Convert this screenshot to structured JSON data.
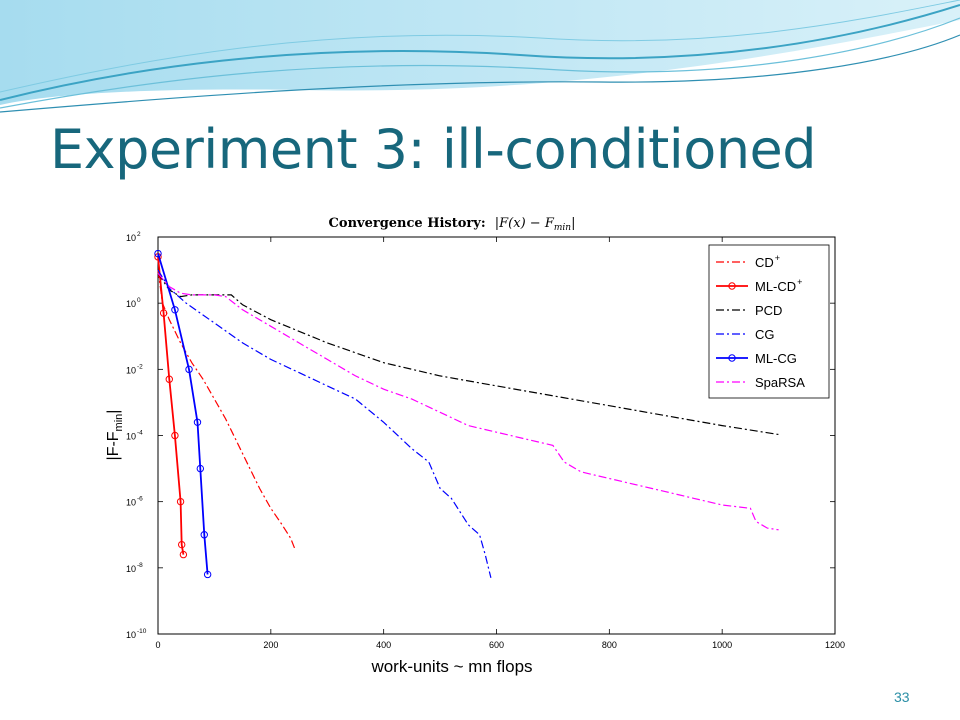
{
  "slide": {
    "title": "Experiment 3: ill-conditioned",
    "page_number": "33"
  },
  "colors": {
    "title": "#17677c",
    "page_number": "#2b8fa6",
    "wave_dark": "#3ba3c4",
    "wave_light": "#bfe6f3"
  },
  "chart_data": {
    "type": "line",
    "title": {
      "prefix": "Convergence History:",
      "math": "|F(x) − F",
      "math_sub": "min",
      "math_end": "|"
    },
    "xlabel": "work-units ~ mn flops",
    "ylabel": {
      "main": "|F-F",
      "sub": "min",
      "end": "|"
    },
    "x_scale": "linear",
    "y_scale": "log",
    "xlim": [
      0,
      1200
    ],
    "ylim_exp": [
      -10,
      2
    ],
    "x_ticks": [
      0,
      200,
      400,
      600,
      800,
      1000,
      1200
    ],
    "x_tick_labels": [
      "0",
      "200",
      "400",
      "600",
      "800",
      "1000",
      "1200"
    ],
    "y_ticks_exp": [
      -10,
      -8,
      -6,
      -4,
      -2,
      0,
      2
    ],
    "y_tick_labels": [
      {
        "base": "10",
        "exp": "-10"
      },
      {
        "base": "10",
        "exp": "-8"
      },
      {
        "base": "10",
        "exp": "-6"
      },
      {
        "base": "10",
        "exp": "-4"
      },
      {
        "base": "10",
        "exp": "-2"
      },
      {
        "base": "10",
        "exp": "0"
      },
      {
        "base": "10",
        "exp": "2"
      }
    ],
    "grid": false,
    "legend_position": "top-right",
    "series": [
      {
        "name": "CD",
        "name_sup": "+",
        "color": "#ff0000",
        "dash": "dashdot",
        "marker": "none",
        "x": [
          0,
          8,
          20,
          40,
          60,
          80,
          100,
          120,
          140,
          160,
          180,
          200,
          220,
          235,
          242
        ],
        "y_log10": [
          1.0,
          0.0,
          -0.5,
          -1.2,
          -1.8,
          -2.3,
          -2.9,
          -3.5,
          -4.2,
          -4.9,
          -5.6,
          -6.2,
          -6.7,
          -7.1,
          -7.4
        ]
      },
      {
        "name": "ML-CD",
        "name_sup": "+",
        "color": "#ff0000",
        "dash": "solid",
        "marker": "circle",
        "x": [
          0,
          10,
          20,
          30,
          40,
          42,
          45
        ],
        "y_log10": [
          1.4,
          -0.3,
          -2.3,
          -4.0,
          -6.0,
          -7.3,
          -7.6
        ]
      },
      {
        "name": "PCD",
        "name_sup": "",
        "color": "#000000",
        "dash": "dashdot",
        "marker": "none",
        "x": [
          0,
          20,
          40,
          60,
          100,
          130,
          150,
          200,
          300,
          400,
          500,
          600,
          700,
          800,
          900,
          1000,
          1100
        ],
        "y_log10": [
          0.9,
          0.4,
          0.2,
          0.25,
          0.25,
          0.25,
          -0.05,
          -0.5,
          -1.2,
          -1.8,
          -2.2,
          -2.5,
          -2.8,
          -3.1,
          -3.4,
          -3.7,
          -3.97
        ]
      },
      {
        "name": "CG",
        "name_sup": "",
        "color": "#0000ff",
        "dash": "dashdot",
        "marker": "none",
        "x": [
          0,
          20,
          50,
          100,
          150,
          200,
          250,
          300,
          350,
          400,
          450,
          480,
          500,
          520,
          550,
          570,
          580,
          590
        ],
        "y_log10": [
          1.0,
          0.45,
          0.0,
          -0.6,
          -1.2,
          -1.7,
          -2.1,
          -2.5,
          -2.9,
          -3.6,
          -4.4,
          -4.8,
          -5.6,
          -5.9,
          -6.7,
          -7.0,
          -7.6,
          -8.3
        ]
      },
      {
        "name": "ML-CG",
        "name_sup": "",
        "color": "#0000ff",
        "dash": "solid",
        "marker": "circle",
        "x": [
          0,
          30,
          55,
          70,
          75,
          82,
          88
        ],
        "y_log10": [
          1.5,
          -0.2,
          -2.0,
          -3.6,
          -5.0,
          -7.0,
          -8.2
        ]
      },
      {
        "name": "SpaRSA",
        "name_sup": "",
        "color": "#ff00ff",
        "dash": "dashdot",
        "marker": "none",
        "x": [
          0,
          20,
          40,
          60,
          100,
          120,
          150,
          200,
          250,
          300,
          350,
          400,
          450,
          500,
          550,
          600,
          650,
          700,
          720,
          750,
          800,
          850,
          900,
          950,
          1000,
          1050,
          1060,
          1080,
          1100
        ],
        "y_log10": [
          0.9,
          0.5,
          0.3,
          0.25,
          0.25,
          0.2,
          -0.2,
          -0.7,
          -1.2,
          -1.7,
          -2.2,
          -2.6,
          -2.9,
          -3.3,
          -3.7,
          -3.9,
          -4.1,
          -4.3,
          -4.8,
          -5.1,
          -5.3,
          -5.5,
          -5.7,
          -5.9,
          -6.1,
          -6.2,
          -6.6,
          -6.8,
          -6.85
        ]
      }
    ]
  }
}
